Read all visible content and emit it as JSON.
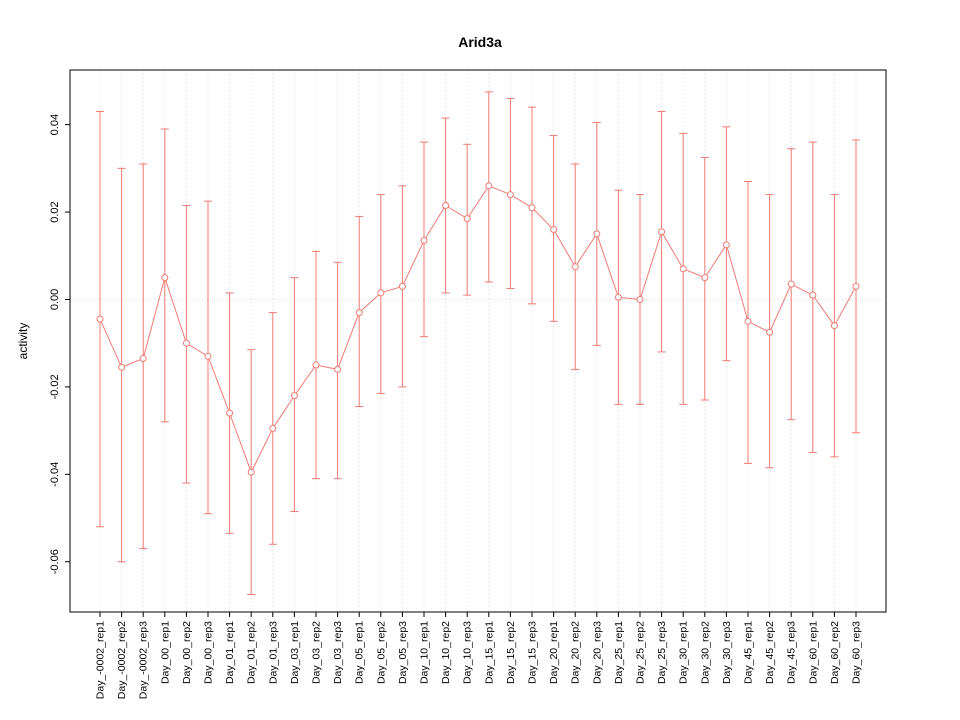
{
  "chart_data": {
    "type": "scatter",
    "title": "Arid3a",
    "xlabel": "",
    "ylabel": "activity",
    "ylim": [
      -0.0715,
      0.0525
    ],
    "yticks": [
      -0.06,
      -0.04,
      -0.02,
      0.0,
      0.02,
      0.04
    ],
    "grid": "dotted vertical gridline at each category; dotted horizontal line at y=0",
    "legend": "none",
    "series_color": "#f07a72",
    "grid_color": "#d6d6d6",
    "border_color": "#000000",
    "marker": "open-circle",
    "error_bar_caps": true,
    "categories": [
      "Day_-0002_rep1",
      "Day_-0002_rep2",
      "Day_-0002_rep3",
      "Day_00_rep1",
      "Day_00_rep2",
      "Day_00_rep3",
      "Day_01_rep1",
      "Day_01_rep2",
      "Day_01_rep3",
      "Day_03_rep1",
      "Day_03_rep2",
      "Day_03_rep3",
      "Day_05_rep1",
      "Day_05_rep2",
      "Day_05_rep3",
      "Day_10_rep1",
      "Day_10_rep2",
      "Day_10_rep3",
      "Day_15_rep1",
      "Day_15_rep2",
      "Day_15_rep3",
      "Day_20_rep1",
      "Day_20_rep2",
      "Day_20_rep3",
      "Day_25_rep1",
      "Day_25_rep2",
      "Day_25_rep3",
      "Day_30_rep1",
      "Day_30_rep2",
      "Day_30_rep3",
      "Day_45_rep1",
      "Day_45_rep2",
      "Day_45_rep3",
      "Day_60_rep1",
      "Day_60_rep2",
      "Day_60_rep3"
    ],
    "values": [
      -0.0045,
      -0.0155,
      -0.0135,
      0.005,
      -0.01,
      -0.013,
      -0.026,
      -0.0395,
      -0.0295,
      -0.022,
      -0.015,
      -0.016,
      -0.003,
      0.0015,
      0.003,
      0.0135,
      0.0215,
      0.0185,
      0.026,
      0.024,
      0.021,
      0.016,
      0.0075,
      0.015,
      0.0005,
      0.0,
      0.0155,
      0.007,
      0.005,
      0.0125,
      -0.005,
      -0.0075,
      0.0035,
      0.001,
      -0.006,
      0.003
    ],
    "error_low": [
      -0.052,
      -0.06,
      -0.057,
      -0.028,
      -0.042,
      -0.049,
      -0.0535,
      -0.0675,
      -0.056,
      -0.0485,
      -0.041,
      -0.041,
      -0.0245,
      -0.0215,
      -0.02,
      -0.0085,
      0.0015,
      0.001,
      0.004,
      0.0025,
      -0.001,
      -0.005,
      -0.016,
      -0.0105,
      -0.024,
      -0.024,
      -0.012,
      -0.024,
      -0.023,
      -0.014,
      -0.0375,
      -0.0385,
      -0.0275,
      -0.035,
      -0.036,
      -0.0305
    ],
    "error_high": [
      0.043,
      0.03,
      0.031,
      0.039,
      0.0215,
      0.0225,
      0.0015,
      -0.0115,
      -0.003,
      0.005,
      0.011,
      0.0085,
      0.019,
      0.024,
      0.026,
      0.036,
      0.0415,
      0.0355,
      0.0475,
      0.046,
      0.044,
      0.0375,
      0.031,
      0.0405,
      0.025,
      0.024,
      0.043,
      0.038,
      0.0325,
      0.0395,
      0.027,
      0.024,
      0.0345,
      0.036,
      0.024,
      0.0365
    ]
  }
}
